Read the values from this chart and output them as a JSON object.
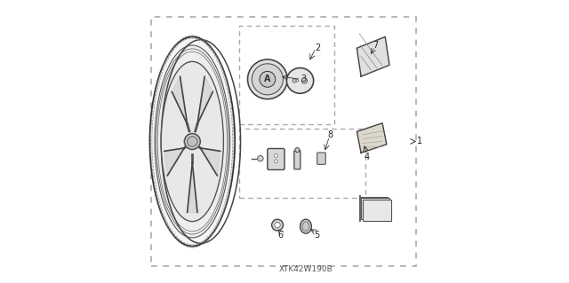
{
  "title": "",
  "watermark": "XTK42W190B",
  "bg_color": "#ffffff",
  "outer_border_color": "#aaaaaa",
  "inner_box1_color": "#aaaaaa",
  "inner_box2_color": "#aaaaaa",
  "label_color": "#222222",
  "line_color": "#555555"
}
